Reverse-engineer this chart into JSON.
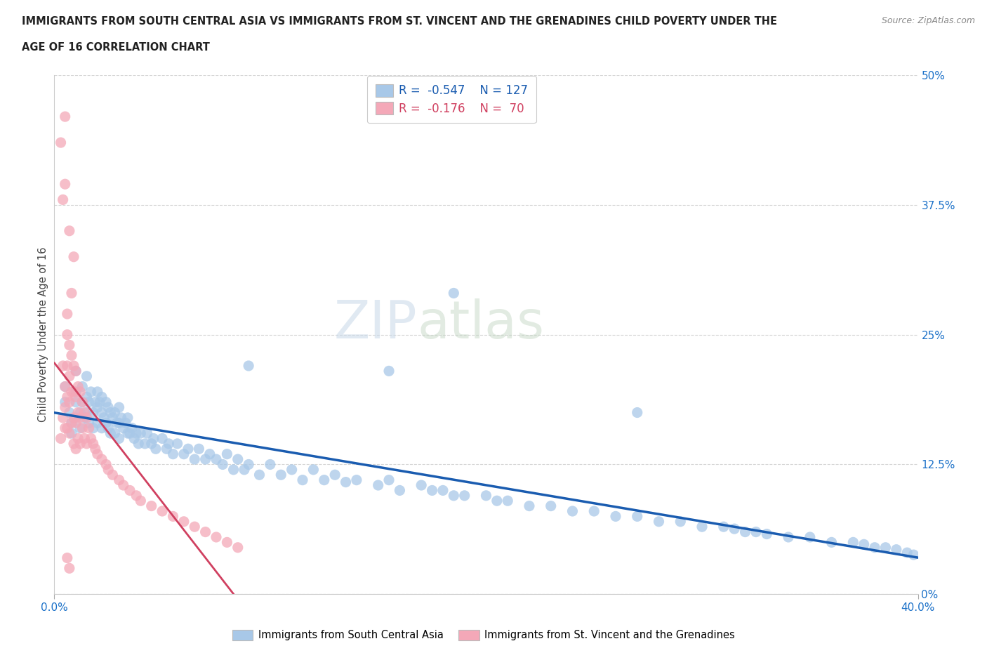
{
  "title_line1": "IMMIGRANTS FROM SOUTH CENTRAL ASIA VS IMMIGRANTS FROM ST. VINCENT AND THE GRENADINES CHILD POVERTY UNDER THE",
  "title_line2": "AGE OF 16 CORRELATION CHART",
  "source_text": "Source: ZipAtlas.com",
  "ylabel": "Child Poverty Under the Age of 16",
  "xlim": [
    0.0,
    0.4
  ],
  "ylim": [
    0.0,
    0.5
  ],
  "yticks": [
    0.0,
    0.125,
    0.25,
    0.375,
    0.5
  ],
  "ytick_labels": [
    "0%",
    "12.5%",
    "25%",
    "37.5%",
    "50%"
  ],
  "xticks": [
    0.0,
    0.4
  ],
  "xtick_labels": [
    "0.0%",
    "40.0%"
  ],
  "blue_R": -0.547,
  "blue_N": 127,
  "pink_R": -0.176,
  "pink_N": 70,
  "blue_color": "#a8c8e8",
  "pink_color": "#f4a8b8",
  "blue_line_color": "#1a5cb0",
  "pink_line_color": "#d04060",
  "legend_label_blue": "Immigrants from South Central Asia",
  "legend_label_pink": "Immigrants from St. Vincent and the Grenadines",
  "watermark_zip": "ZIP",
  "watermark_atlas": "atlas",
  "blue_scatter_x": [
    0.005,
    0.005,
    0.007,
    0.008,
    0.008,
    0.01,
    0.01,
    0.01,
    0.01,
    0.012,
    0.012,
    0.013,
    0.013,
    0.014,
    0.015,
    0.015,
    0.015,
    0.016,
    0.016,
    0.017,
    0.018,
    0.018,
    0.019,
    0.02,
    0.02,
    0.02,
    0.021,
    0.022,
    0.022,
    0.022,
    0.023,
    0.024,
    0.024,
    0.025,
    0.025,
    0.026,
    0.026,
    0.027,
    0.028,
    0.028,
    0.029,
    0.03,
    0.03,
    0.03,
    0.031,
    0.032,
    0.033,
    0.034,
    0.034,
    0.035,
    0.036,
    0.037,
    0.038,
    0.039,
    0.04,
    0.042,
    0.043,
    0.045,
    0.046,
    0.047,
    0.05,
    0.052,
    0.053,
    0.055,
    0.057,
    0.06,
    0.062,
    0.065,
    0.067,
    0.07,
    0.072,
    0.075,
    0.078,
    0.08,
    0.083,
    0.085,
    0.088,
    0.09,
    0.095,
    0.1,
    0.105,
    0.11,
    0.115,
    0.12,
    0.125,
    0.13,
    0.135,
    0.14,
    0.15,
    0.155,
    0.16,
    0.17,
    0.175,
    0.18,
    0.185,
    0.19,
    0.2,
    0.205,
    0.21,
    0.22,
    0.23,
    0.24,
    0.25,
    0.26,
    0.27,
    0.28,
    0.29,
    0.3,
    0.31,
    0.315,
    0.32,
    0.325,
    0.33,
    0.34,
    0.35,
    0.36,
    0.37,
    0.375,
    0.38,
    0.385,
    0.39,
    0.395,
    0.398,
    0.185,
    0.09,
    0.27,
    0.155
  ],
  "blue_scatter_y": [
    0.2,
    0.185,
    0.175,
    0.165,
    0.155,
    0.215,
    0.195,
    0.185,
    0.17,
    0.175,
    0.16,
    0.2,
    0.185,
    0.17,
    0.21,
    0.19,
    0.175,
    0.185,
    0.165,
    0.195,
    0.175,
    0.16,
    0.185,
    0.195,
    0.18,
    0.165,
    0.185,
    0.175,
    0.16,
    0.19,
    0.17,
    0.185,
    0.165,
    0.18,
    0.16,
    0.175,
    0.155,
    0.17,
    0.175,
    0.155,
    0.165,
    0.18,
    0.165,
    0.15,
    0.17,
    0.16,
    0.165,
    0.155,
    0.17,
    0.155,
    0.16,
    0.15,
    0.155,
    0.145,
    0.155,
    0.145,
    0.155,
    0.145,
    0.15,
    0.14,
    0.15,
    0.14,
    0.145,
    0.135,
    0.145,
    0.135,
    0.14,
    0.13,
    0.14,
    0.13,
    0.135,
    0.13,
    0.125,
    0.135,
    0.12,
    0.13,
    0.12,
    0.125,
    0.115,
    0.125,
    0.115,
    0.12,
    0.11,
    0.12,
    0.11,
    0.115,
    0.108,
    0.11,
    0.105,
    0.11,
    0.1,
    0.105,
    0.1,
    0.1,
    0.095,
    0.095,
    0.095,
    0.09,
    0.09,
    0.085,
    0.085,
    0.08,
    0.08,
    0.075,
    0.075,
    0.07,
    0.07,
    0.065,
    0.065,
    0.063,
    0.06,
    0.06,
    0.058,
    0.055,
    0.055,
    0.05,
    0.05,
    0.048,
    0.045,
    0.045,
    0.043,
    0.04,
    0.038,
    0.29,
    0.22,
    0.175,
    0.215
  ],
  "pink_scatter_x": [
    0.003,
    0.004,
    0.004,
    0.005,
    0.005,
    0.005,
    0.006,
    0.006,
    0.006,
    0.006,
    0.007,
    0.007,
    0.007,
    0.007,
    0.008,
    0.008,
    0.008,
    0.009,
    0.009,
    0.009,
    0.009,
    0.01,
    0.01,
    0.01,
    0.01,
    0.011,
    0.011,
    0.011,
    0.012,
    0.012,
    0.012,
    0.013,
    0.013,
    0.014,
    0.014,
    0.015,
    0.015,
    0.016,
    0.017,
    0.018,
    0.019,
    0.02,
    0.022,
    0.024,
    0.025,
    0.027,
    0.03,
    0.032,
    0.035,
    0.038,
    0.04,
    0.045,
    0.05,
    0.055,
    0.06,
    0.065,
    0.07,
    0.075,
    0.08,
    0.085,
    0.003,
    0.004,
    0.005,
    0.006,
    0.007,
    0.008,
    0.009,
    0.005,
    0.006,
    0.007
  ],
  "pink_scatter_y": [
    0.15,
    0.22,
    0.17,
    0.2,
    0.18,
    0.16,
    0.25,
    0.22,
    0.19,
    0.16,
    0.24,
    0.21,
    0.185,
    0.155,
    0.23,
    0.195,
    0.165,
    0.22,
    0.195,
    0.17,
    0.145,
    0.215,
    0.19,
    0.165,
    0.14,
    0.2,
    0.175,
    0.15,
    0.195,
    0.17,
    0.145,
    0.185,
    0.16,
    0.175,
    0.15,
    0.17,
    0.145,
    0.16,
    0.15,
    0.145,
    0.14,
    0.135,
    0.13,
    0.125,
    0.12,
    0.115,
    0.11,
    0.105,
    0.1,
    0.095,
    0.09,
    0.085,
    0.08,
    0.075,
    0.07,
    0.065,
    0.06,
    0.055,
    0.05,
    0.045,
    0.435,
    0.38,
    0.395,
    0.27,
    0.35,
    0.29,
    0.325,
    0.46,
    0.035,
    0.025
  ]
}
